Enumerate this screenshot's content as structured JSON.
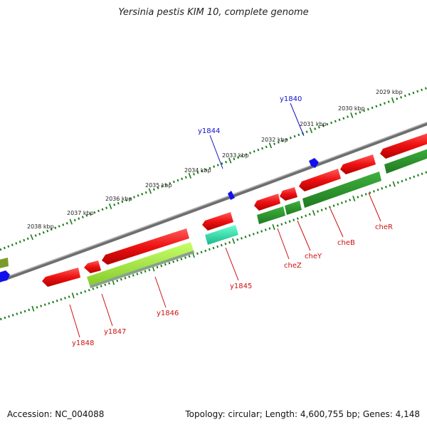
{
  "title": "Yersinia pestis KIM 10, complete genome",
  "accession": "Accession: NC_004088",
  "genome_stats": "Topology: circular; Length: 4,600,755 bp; Genes: 4,148",
  "colors": {
    "backbone": "#7a7a7a",
    "ruler_ticks": "#1a7a1a",
    "forward_cds": "#ee1111",
    "reverse_cds_dark": "#2a9a2a",
    "reverse_cds_light": "#9be43a",
    "reverse_cds_cyan": "#22ddaa",
    "olive_feature": "#7a9a2a",
    "marker": "#1111ee",
    "label_red": "#cc1111",
    "label_blue": "#1111cc"
  },
  "ruler_labels": [
    "2038 kbp",
    "2037 kbp",
    "2036 kbp",
    "2035 kbp",
    "2034 kbp",
    "2033 kbp",
    "2032 kbp",
    "2031 kbp",
    "2030 kbp",
    "2029 kbp"
  ],
  "gene_labels": {
    "outer": [
      "y1844",
      "y1840"
    ],
    "inner": [
      "y1848",
      "y1847",
      "y1846",
      "y1845",
      "cheZ",
      "cheY",
      "cheB",
      "cheR"
    ]
  }
}
